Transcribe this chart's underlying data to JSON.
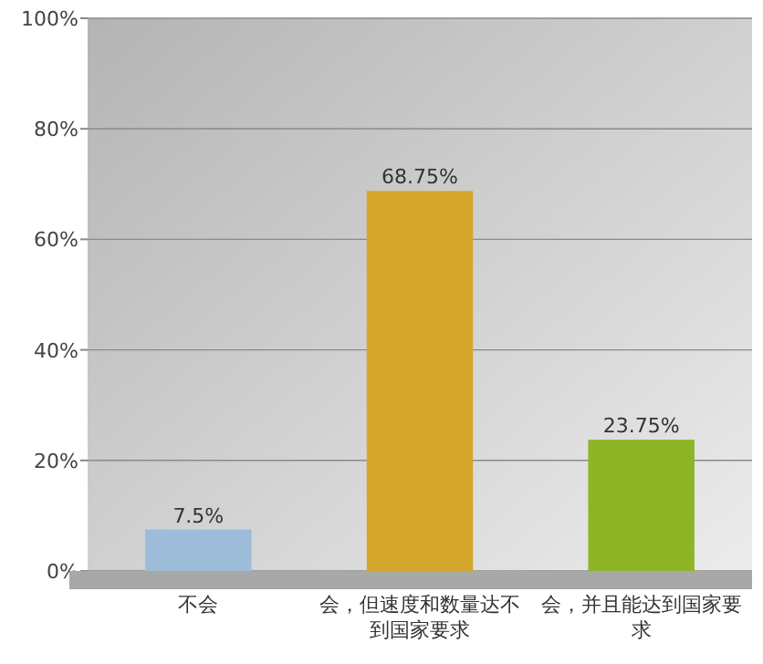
{
  "chart_data": {
    "type": "bar",
    "categories": [
      "不会",
      "会，但速度和数量达不到国家要求",
      "会，并且能达到国家要求"
    ],
    "values": [
      7.5,
      68.75,
      23.75
    ],
    "colors": [
      "#9dbcd9",
      "#d4a72c",
      "#8db526"
    ],
    "value_labels": [
      "7.5%",
      "68.75%",
      "23.75%"
    ],
    "ylim": [
      0,
      100
    ],
    "yticks": [
      {
        "value": 0,
        "label": "0%"
      },
      {
        "value": 20,
        "label": "20%"
      },
      {
        "value": 40,
        "label": "40%"
      },
      {
        "value": 60,
        "label": "60%"
      },
      {
        "value": 80,
        "label": "80%"
      },
      {
        "value": 100,
        "label": "100%"
      }
    ],
    "grid": "y"
  }
}
